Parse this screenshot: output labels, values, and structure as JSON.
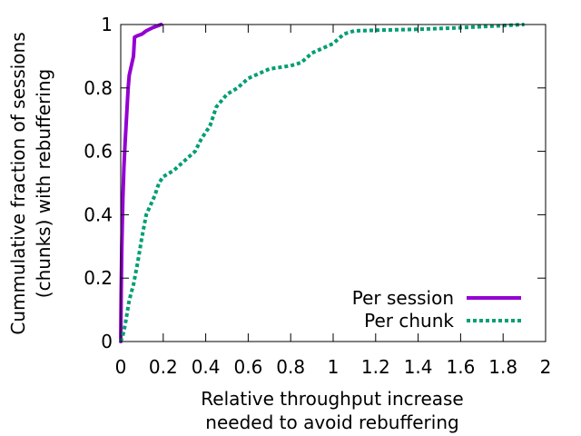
{
  "chart_data": {
    "type": "line",
    "xlabel_lines": [
      "Relative throughput increase",
      "needed to avoid rebuffering"
    ],
    "ylabel_lines": [
      "Cummulative fraction of sessions",
      "(chunks) with rebuffering"
    ],
    "xlim": [
      0,
      2
    ],
    "ylim": [
      0,
      1
    ],
    "x_ticks": [
      {
        "value": 0,
        "label": "0"
      },
      {
        "value": 0.2,
        "label": "0.2"
      },
      {
        "value": 0.4,
        "label": "0.4"
      },
      {
        "value": 0.6,
        "label": "0.6"
      },
      {
        "value": 0.8,
        "label": "0.8"
      },
      {
        "value": 1,
        "label": "1"
      },
      {
        "value": 1.2,
        "label": "1.2"
      },
      {
        "value": 1.4,
        "label": "1.4"
      },
      {
        "value": 1.6,
        "label": "1.6"
      },
      {
        "value": 1.8,
        "label": "1.8"
      },
      {
        "value": 2,
        "label": "2"
      }
    ],
    "y_ticks": [
      {
        "value": 0,
        "label": "0"
      },
      {
        "value": 0.2,
        "label": "0.2"
      },
      {
        "value": 0.4,
        "label": "0.4"
      },
      {
        "value": 0.6,
        "label": "0.6"
      },
      {
        "value": 0.8,
        "label": "0.8"
      },
      {
        "value": 1,
        "label": "1"
      }
    ],
    "legend_position": "bottom-right",
    "grid": false,
    "series": [
      {
        "name": "Per session",
        "color": "#9400d3",
        "style": "solid",
        "x": [
          0,
          0.002,
          0.005,
          0.01,
          0.015,
          0.02,
          0.025,
          0.03,
          0.035,
          0.04,
          0.05,
          0.06,
          0.065,
          0.08,
          0.1,
          0.12,
          0.15,
          0.19
        ],
        "y": [
          0,
          0.15,
          0.3,
          0.45,
          0.55,
          0.62,
          0.68,
          0.74,
          0.8,
          0.84,
          0.87,
          0.9,
          0.96,
          0.965,
          0.97,
          0.98,
          0.99,
          1.0
        ]
      },
      {
        "name": "Per chunk",
        "color": "#009e73",
        "style": "dotted",
        "x": [
          0,
          0.01,
          0.02,
          0.04,
          0.06,
          0.08,
          0.1,
          0.12,
          0.14,
          0.16,
          0.18,
          0.2,
          0.25,
          0.3,
          0.35,
          0.38,
          0.4,
          0.42,
          0.45,
          0.5,
          0.55,
          0.6,
          0.7,
          0.8,
          0.85,
          0.9,
          1.0,
          1.05,
          1.1,
          1.2,
          1.4,
          1.6,
          1.9
        ],
        "y": [
          0,
          0.02,
          0.05,
          0.13,
          0.18,
          0.25,
          0.33,
          0.4,
          0.43,
          0.46,
          0.5,
          0.52,
          0.54,
          0.57,
          0.6,
          0.64,
          0.66,
          0.68,
          0.74,
          0.78,
          0.8,
          0.83,
          0.86,
          0.87,
          0.88,
          0.91,
          0.94,
          0.97,
          0.98,
          0.982,
          0.985,
          0.99,
          1.0
        ]
      }
    ]
  }
}
